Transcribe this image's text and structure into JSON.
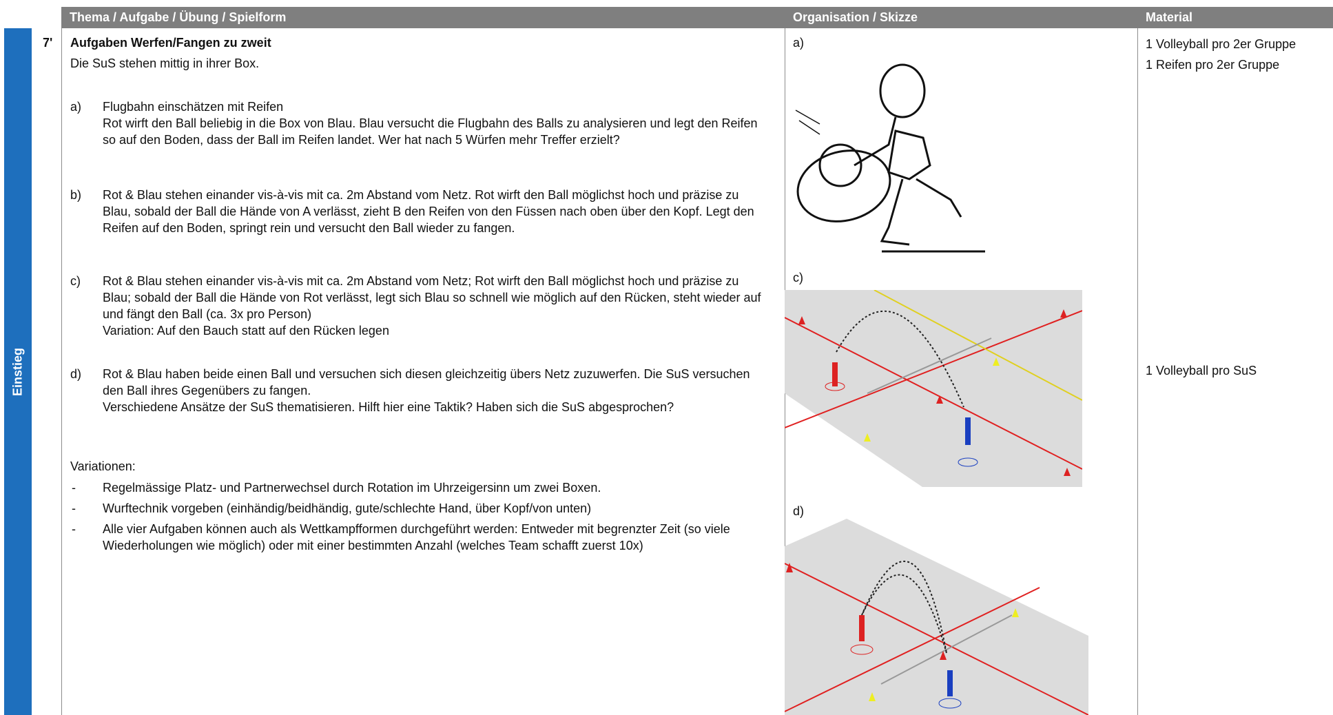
{
  "header": {
    "columns": [
      "Thema / Aufgabe / Übung / Spielform",
      "Organisation / Skizze",
      "Material"
    ]
  },
  "section": {
    "label": "Einstieg",
    "time": "7'"
  },
  "task": {
    "title": "Aufgaben Werfen/Fangen zu zweit",
    "intro": "Die SuS stehen mittig in ihrer Box.",
    "items": [
      {
        "marker": "a)",
        "paragraphs": [
          "Flugbahn einschätzen mit Reifen",
          "Rot wirft den Ball beliebig in die Box von Blau. Blau versucht die Flugbahn des Balls zu analysieren und legt den Reifen so auf den Boden, dass der Ball im Reifen landet. Wer hat nach 5 Würfen mehr Treffer erzielt?"
        ]
      },
      {
        "marker": "b)",
        "paragraphs": [
          "Rot & Blau stehen einander vis-à-vis mit ca. 2m Abstand vom Netz. Rot wirft den Ball möglichst hoch und präzise zu Blau, sobald der Ball die Hände von A verlässt, zieht B den Reifen von den Füssen nach oben über den Kopf. Legt den Reifen auf den Boden, springt rein und versucht den Ball wieder zu fangen."
        ]
      },
      {
        "marker": "c)",
        "paragraphs": [
          "Rot & Blau stehen einander vis-à-vis mit ca. 2m Abstand vom Netz; Rot wirft den Ball möglichst hoch und präzise zu Blau; sobald der Ball die Hände von Rot verlässt, legt sich Blau so schnell wie möglich auf den Rücken, steht wieder auf und fängt den Ball (ca. 3x pro Person)",
          "Variation: Auf den Bauch statt auf den Rücken legen"
        ]
      },
      {
        "marker": "d)",
        "paragraphs": [
          "Rot & Blau haben beide einen Ball und versuchen sich diesen gleichzeitig übers Netz zuzuwerfen. Die SuS versuchen den Ball ihres Gegenübers zu fangen.",
          "Verschiedene Ansätze der SuS thematisieren. Hilft hier eine Taktik? Haben sich die SuS abgesprochen?"
        ]
      }
    ],
    "variations_title": "Variationen:",
    "variations": [
      {
        "marker": "-",
        "text": "Regelmässige Platz- und Partnerwechsel durch Rotation im Uhrzeigersinn um zwei Boxen."
      },
      {
        "marker": "-",
        "text": "Wurftechnik vorgeben (einhändig/beidhändig, gute/schlechte Hand, über Kopf/von unten)"
      },
      {
        "marker": "-",
        "text": "Alle vier Aufgaben können auch als Wettkampfformen durchgeführt werden: Entweder mit begrenzter Zeit (so viele Wiederholungen wie möglich) oder mit einer bestimmten Anzahl (welches Team schafft zuerst 10x)"
      }
    ]
  },
  "sketches": [
    "a)",
    "c)",
    "d)"
  ],
  "material": [
    "1 Volleyball pro 2er Gruppe",
    "1 Reifen pro 2er Gruppe",
    "1 Volleyball pro SuS"
  ]
}
